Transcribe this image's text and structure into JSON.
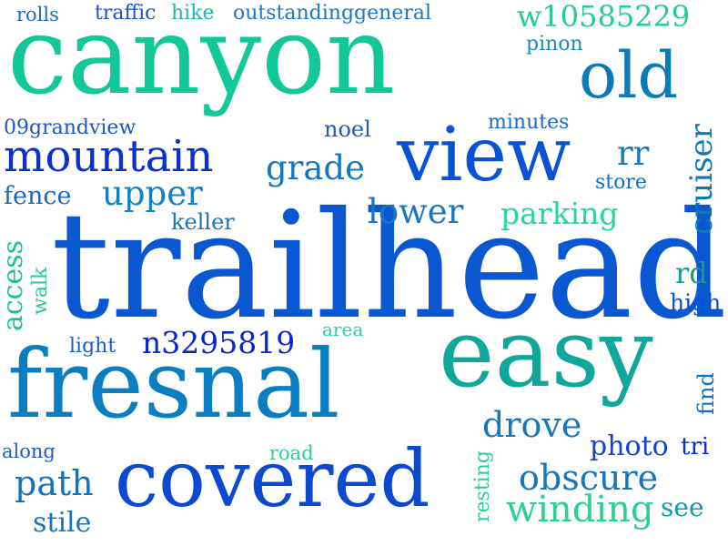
{
  "word_cloud": {
    "words": [
      {
        "text": "canyon",
        "color": "#12c799"
      },
      {
        "text": "trailhead",
        "color": "#0a57d2"
      },
      {
        "text": "easy",
        "color": "#0ea79a"
      },
      {
        "text": "fresnal",
        "color": "#0a7ec0"
      },
      {
        "text": "covered",
        "color": "#0b49cf"
      },
      {
        "text": "view",
        "color": "#0852d8"
      },
      {
        "text": "old",
        "color": "#0b7ab6"
      },
      {
        "text": "mountain",
        "color": "#0c2fd0"
      },
      {
        "text": "grade",
        "color": "#1276c0"
      },
      {
        "text": "upper",
        "color": "#1282c0"
      },
      {
        "text": "lower",
        "color": "#1a76c0"
      },
      {
        "text": "parking",
        "color": "#27d69a"
      },
      {
        "text": "rr",
        "color": "#147ac0"
      },
      {
        "text": "store",
        "color": "#1070c8"
      },
      {
        "text": "cruiser",
        "color": "#0b7ab6"
      },
      {
        "text": "n3295819",
        "color": "#0c24d0"
      },
      {
        "text": "drove",
        "color": "#1576c0"
      },
      {
        "text": "photo",
        "color": "#1342d0"
      },
      {
        "text": "obscure",
        "color": "#1276c0"
      },
      {
        "text": "winding",
        "color": "#2bd28f"
      },
      {
        "text": "see",
        "color": "#0f9ab0"
      },
      {
        "text": "path",
        "color": "#1172c0"
      },
      {
        "text": "stile",
        "color": "#1574bd"
      },
      {
        "text": "along",
        "color": "#1f5cc0"
      },
      {
        "text": "road",
        "color": "#30cc95"
      },
      {
        "text": "resting",
        "color": "#30cc95"
      },
      {
        "text": "tri",
        "color": "#0f2ad6"
      },
      {
        "text": "find",
        "color": "#0f6fc8"
      },
      {
        "text": "high",
        "color": "#0b52d0"
      },
      {
        "text": "rd",
        "color": "#1a9a8f"
      },
      {
        "text": "area",
        "color": "#31cfa0"
      },
      {
        "text": "light",
        "color": "#1b5cc8"
      },
      {
        "text": "access",
        "color": "#19c28f"
      },
      {
        "text": "walk",
        "color": "#29c79f"
      },
      {
        "text": "keller",
        "color": "#1e72b8"
      },
      {
        "text": "fence",
        "color": "#1668c0"
      },
      {
        "text": "09grandview",
        "color": "#1d58c2"
      },
      {
        "text": "noel",
        "color": "#1d58c2"
      },
      {
        "text": "minutes",
        "color": "#1f68c8"
      },
      {
        "text": "pinon",
        "color": "#1d8ab8"
      },
      {
        "text": "w10585229",
        "color": "#23cc8f"
      },
      {
        "text": "outstandinggeneral",
        "color": "#1f76c0"
      },
      {
        "text": "traffic",
        "color": "#1e52c8"
      },
      {
        "text": "hike",
        "color": "#23b4b0"
      },
      {
        "text": "rolls",
        "color": "#1d6ac0"
      }
    ]
  }
}
